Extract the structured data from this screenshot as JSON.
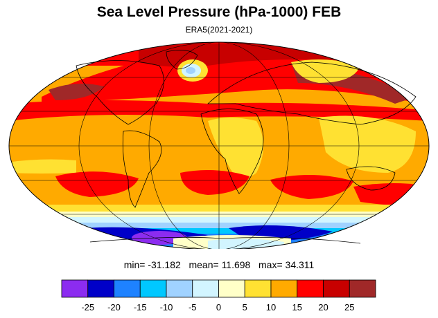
{
  "title": "Sea Level Pressure (hPa-1000) FEB",
  "subtitle": "ERA5(2021-2021)",
  "stats": {
    "min_label": "min=",
    "min": "-31.182",
    "mean_label": "mean=",
    "mean": "11.698",
    "max_label": "max=",
    "max": "34.311"
  },
  "colorbar": {
    "colors": [
      "#8c2cf0",
      "#0000c8",
      "#1e82ff",
      "#00c8ff",
      "#a0d2ff",
      "#d2f5ff",
      "#ffffc8",
      "#ffe132",
      "#ffaa00",
      "#ff0000",
      "#c80000",
      "#a02828"
    ],
    "tick_labels": [
      "-25",
      "-20",
      "-15",
      "-10",
      "-5",
      "0",
      "5",
      "10",
      "15",
      "20",
      "25"
    ]
  },
  "map": {
    "projection": "mollweide",
    "ocean_base_color": "#ffaa00",
    "coastline_color": "#000000",
    "graticule_color": "#000000"
  }
}
